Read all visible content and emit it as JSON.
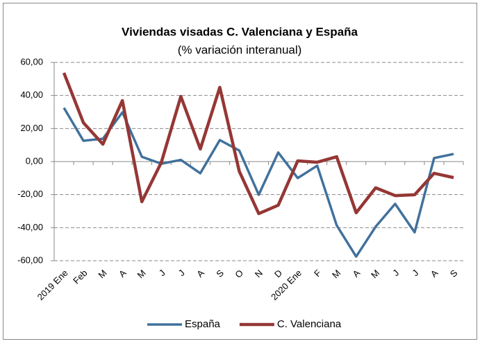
{
  "chart_data": {
    "type": "line",
    "title": "Viviendas visadas C. Valenciana y España",
    "subtitle": "(% variación interanual)",
    "categories": [
      "2019 Ene",
      "Feb",
      "M",
      "A",
      "M",
      "J",
      "J",
      "A",
      "S",
      "O",
      "N",
      "D",
      "2020 Ene",
      "F",
      "M",
      "A",
      "M",
      "J",
      "J",
      "A",
      "S"
    ],
    "series": [
      {
        "name": "España",
        "color": "#41719c",
        "values": [
          32.5,
          12.6,
          13.8,
          29.8,
          2.9,
          -1.3,
          1.0,
          -7.1,
          13.0,
          6.7,
          -20.1,
          5.5,
          -10.0,
          -2.5,
          -38.6,
          -57.5,
          -39.4,
          -25.6,
          -42.8,
          2.1,
          4.6
        ]
      },
      {
        "name": "C. Valenciana",
        "color": "#953735",
        "values": [
          53.7,
          23.5,
          10.5,
          36.9,
          -24.3,
          -0.5,
          39.4,
          7.6,
          44.9,
          -5.9,
          -31.5,
          -26.4,
          0.4,
          -0.4,
          2.9,
          -31.0,
          -15.9,
          -20.6,
          -20.1,
          -7.1,
          -9.7
        ]
      }
    ],
    "ylim": [
      -60,
      60
    ],
    "yticks": [
      {
        "value": -60,
        "label": "-60,00"
      },
      {
        "value": -40,
        "label": "-40,00"
      },
      {
        "value": -20,
        "label": "-20,00"
      },
      {
        "value": 0,
        "label": "0,00"
      },
      {
        "value": 20,
        "label": "20,00"
      },
      {
        "value": 40,
        "label": "40,00"
      },
      {
        "value": 60,
        "label": "60,00"
      }
    ],
    "grid": true,
    "legend": "bottom"
  }
}
